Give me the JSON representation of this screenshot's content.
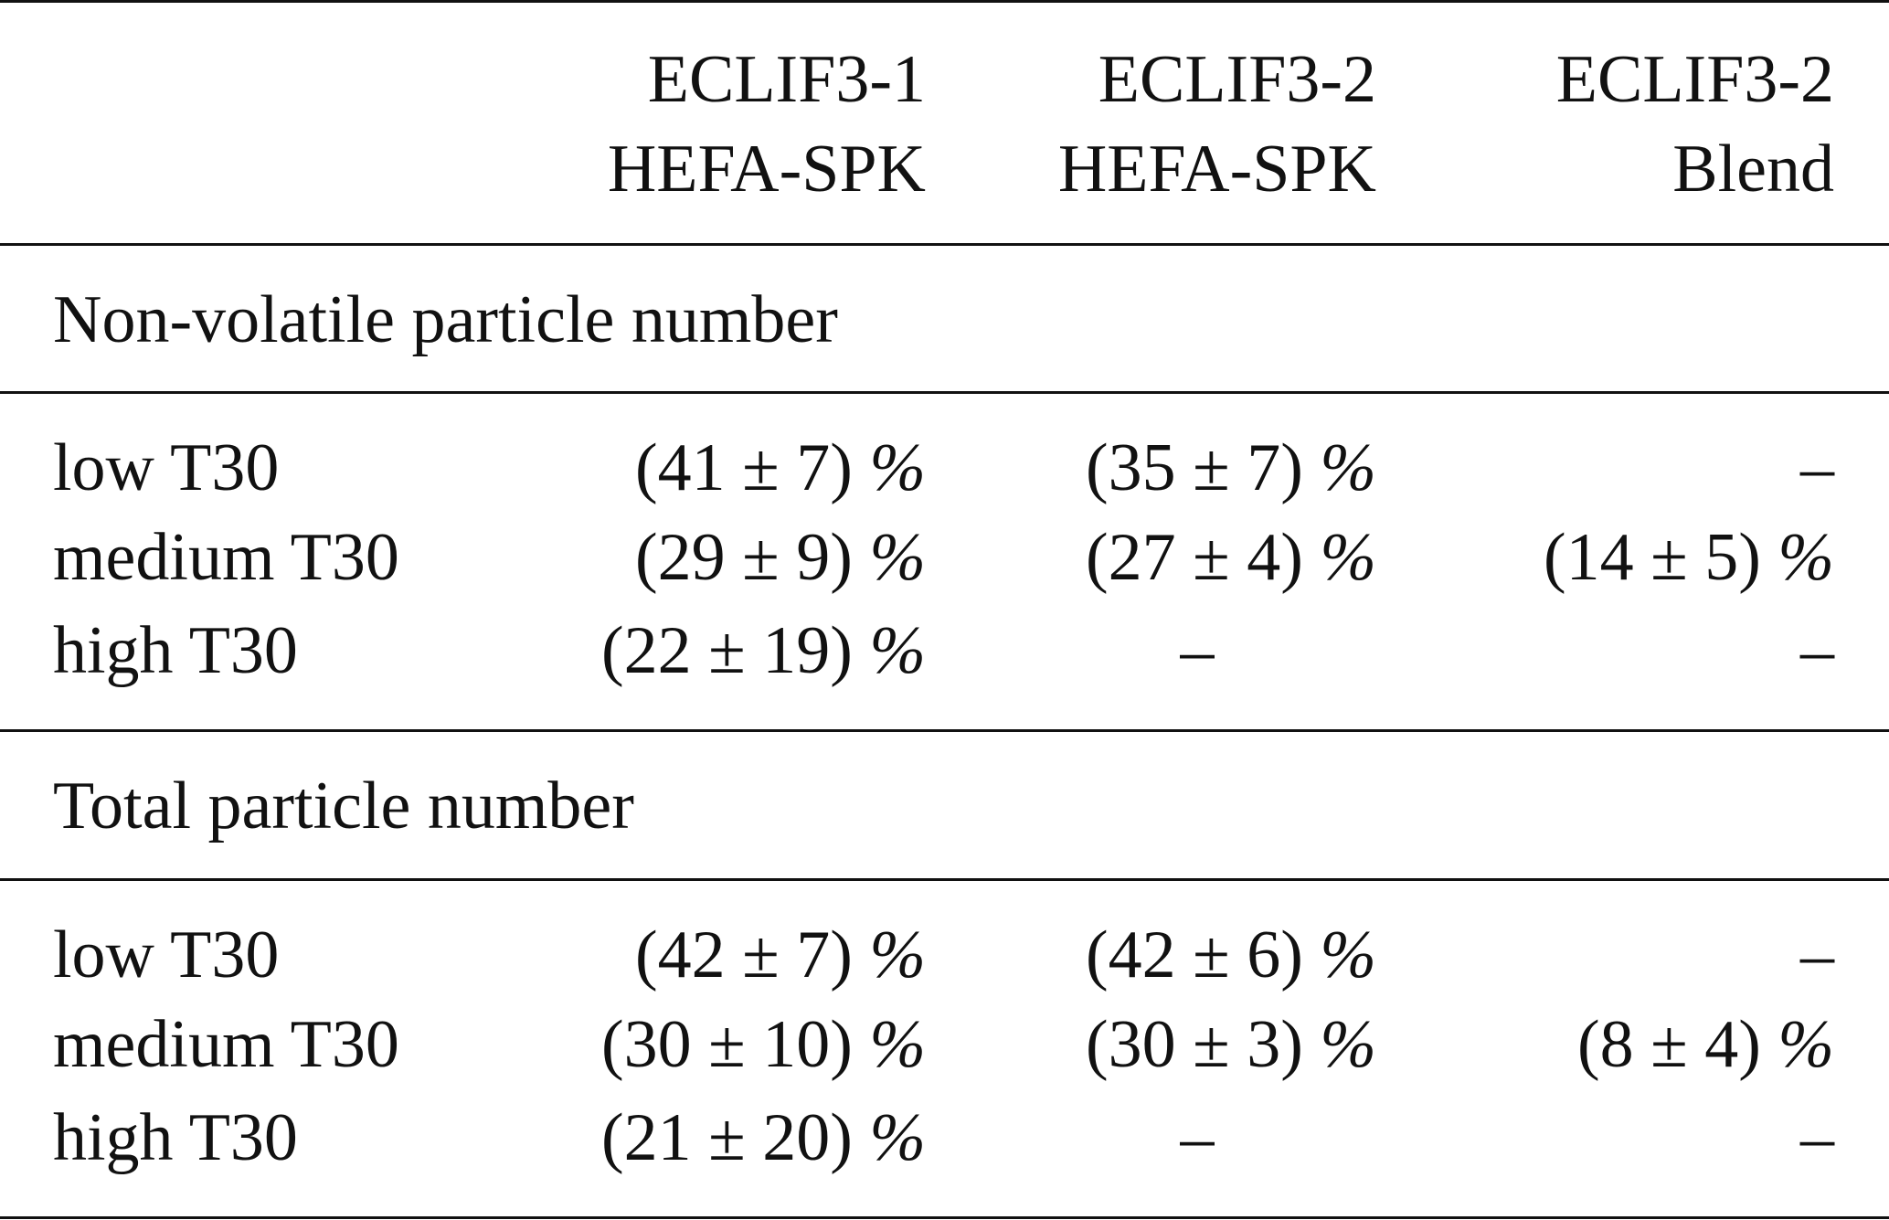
{
  "table": {
    "columns": [
      {
        "line1": "ECLIF3-1",
        "line2": "HEFA-SPK"
      },
      {
        "line1": "ECLIF3-2",
        "line2": "HEFA-SPK"
      },
      {
        "line1": "ECLIF3-2",
        "line2": "Blend"
      }
    ],
    "sections": [
      {
        "title": "Non-volatile particle number",
        "rows": [
          {
            "label": "low T30",
            "v1": "(41 ± 7)",
            "v2": "(35 ± 7)",
            "v3": "–"
          },
          {
            "label": "medium T30",
            "v1": "(29 ± 9)",
            "v2": "(27 ± 4)",
            "v3": "(14 ± 5)"
          },
          {
            "label": "high T30",
            "v1": "(22 ± 19)",
            "v2": "–",
            "v3": "–"
          }
        ]
      },
      {
        "title": "Total particle number",
        "rows": [
          {
            "label": "low T30",
            "v1": "(42 ± 7)",
            "v2": "(42 ± 6)",
            "v3": "–"
          },
          {
            "label": "medium T30",
            "v1": "(30 ± 10)",
            "v2": "(30 ± 3)",
            "v3": "(8 ± 4)"
          },
          {
            "label": "high T30",
            "v1": "(21 ± 20)",
            "v2": "–",
            "v3": "–"
          }
        ]
      }
    ],
    "percent_sign": "%"
  }
}
